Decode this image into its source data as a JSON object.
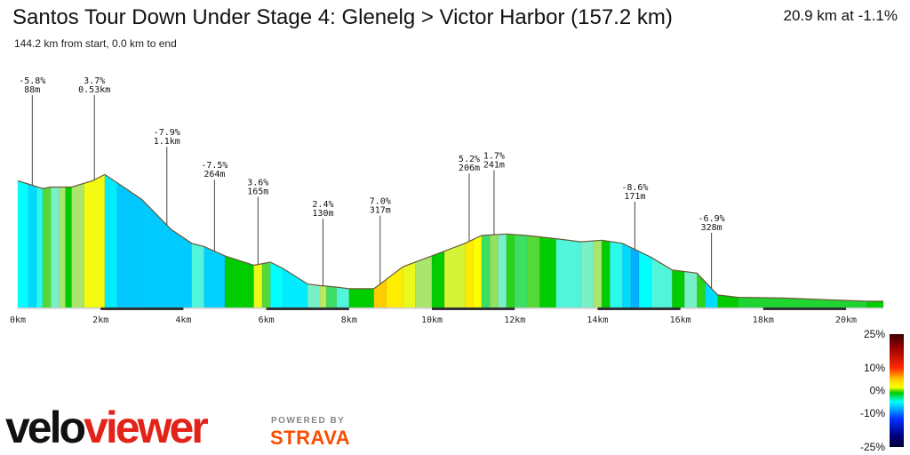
{
  "chart_data": {
    "type": "area",
    "title": "Santos Tour Down Under Stage 4: Glenelg > Victor Harbor (157.2 km)",
    "subtitle": "144.2 km from start, 0.0 km to end",
    "summary": "20.9 km at -1.1%",
    "xlim": [
      0,
      20.9
    ],
    "x_ticks": [
      {
        "value": 0,
        "label": "0km"
      },
      {
        "value": 2,
        "label": "2km"
      },
      {
        "value": 4,
        "label": "4km"
      },
      {
        "value": 6,
        "label": "6km"
      },
      {
        "value": 8,
        "label": "8km"
      },
      {
        "value": 10,
        "label": "10km"
      },
      {
        "value": 12,
        "label": "12km"
      },
      {
        "value": 14,
        "label": "14km"
      },
      {
        "value": 16,
        "label": "16km"
      },
      {
        "value": 18,
        "label": "18km"
      },
      {
        "value": 20,
        "label": "20km"
      }
    ],
    "elevation_profile": [
      {
        "km": 0.0,
        "rel": 0.81
      },
      {
        "km": 0.25,
        "rel": 0.79
      },
      {
        "km": 0.6,
        "rel": 0.76
      },
      {
        "km": 0.8,
        "rel": 0.77
      },
      {
        "km": 1.3,
        "rel": 0.77
      },
      {
        "km": 1.8,
        "rel": 0.81
      },
      {
        "km": 2.1,
        "rel": 0.85
      },
      {
        "km": 2.5,
        "rel": 0.78
      },
      {
        "km": 3.0,
        "rel": 0.69
      },
      {
        "km": 3.7,
        "rel": 0.5
      },
      {
        "km": 4.2,
        "rel": 0.41
      },
      {
        "km": 4.5,
        "rel": 0.39
      },
      {
        "km": 5.0,
        "rel": 0.33
      },
      {
        "km": 5.7,
        "rel": 0.27
      },
      {
        "km": 6.1,
        "rel": 0.29
      },
      {
        "km": 6.4,
        "rel": 0.25
      },
      {
        "km": 7.0,
        "rel": 0.15
      },
      {
        "km": 7.3,
        "rel": 0.14
      },
      {
        "km": 7.7,
        "rel": 0.13
      },
      {
        "km": 8.0,
        "rel": 0.12
      },
      {
        "km": 8.6,
        "rel": 0.12
      },
      {
        "km": 8.9,
        "rel": 0.18
      },
      {
        "km": 9.3,
        "rel": 0.26
      },
      {
        "km": 10.0,
        "rel": 0.33
      },
      {
        "km": 10.8,
        "rel": 0.41
      },
      {
        "km": 11.2,
        "rel": 0.46
      },
      {
        "km": 11.8,
        "rel": 0.47
      },
      {
        "km": 12.3,
        "rel": 0.46
      },
      {
        "km": 13.0,
        "rel": 0.44
      },
      {
        "km": 13.6,
        "rel": 0.42
      },
      {
        "km": 14.1,
        "rel": 0.43
      },
      {
        "km": 14.6,
        "rel": 0.41
      },
      {
        "km": 15.3,
        "rel": 0.32
      },
      {
        "km": 15.8,
        "rel": 0.24
      },
      {
        "km": 16.4,
        "rel": 0.22
      },
      {
        "km": 16.9,
        "rel": 0.08
      },
      {
        "km": 17.4,
        "rel": 0.065
      },
      {
        "km": 18.5,
        "rel": 0.06
      },
      {
        "km": 19.5,
        "rel": 0.05
      },
      {
        "km": 20.5,
        "rel": 0.04
      },
      {
        "km": 20.9,
        "rel": 0.04
      }
    ],
    "segments": [
      {
        "x0": 0.0,
        "x1": 0.25,
        "grade": -5
      },
      {
        "x0": 0.25,
        "x1": 0.45,
        "grade": -7
      },
      {
        "x0": 0.45,
        "x1": 0.6,
        "grade": -4
      },
      {
        "x0": 0.6,
        "x1": 0.8,
        "grade": 1
      },
      {
        "x0": 0.8,
        "x1": 1.0,
        "grade": -2
      },
      {
        "x0": 1.0,
        "x1": 1.15,
        "grade": 2
      },
      {
        "x0": 1.15,
        "x1": 1.3,
        "grade": 0
      },
      {
        "x0": 1.3,
        "x1": 1.6,
        "grade": 2
      },
      {
        "x0": 1.6,
        "x1": 2.1,
        "grade": 3.7
      },
      {
        "x0": 2.1,
        "x1": 2.4,
        "grade": -6
      },
      {
        "x0": 2.4,
        "x1": 3.0,
        "grade": -8
      },
      {
        "x0": 3.0,
        "x1": 4.2,
        "grade": -7.9
      },
      {
        "x0": 4.2,
        "x1": 4.5,
        "grade": -3
      },
      {
        "x0": 4.5,
        "x1": 5.0,
        "grade": -7.5
      },
      {
        "x0": 5.0,
        "x1": 5.7,
        "grade": 0
      },
      {
        "x0": 5.7,
        "x1": 5.9,
        "grade": 3.6
      },
      {
        "x0": 5.9,
        "x1": 6.1,
        "grade": 1
      },
      {
        "x0": 6.1,
        "x1": 6.4,
        "grade": -5
      },
      {
        "x0": 6.4,
        "x1": 7.0,
        "grade": -6
      },
      {
        "x0": 7.0,
        "x1": 7.3,
        "grade": -2
      },
      {
        "x0": 7.3,
        "x1": 7.45,
        "grade": 2.4
      },
      {
        "x0": 7.45,
        "x1": 7.7,
        "grade": -1
      },
      {
        "x0": 7.7,
        "x1": 8.0,
        "grade": -3
      },
      {
        "x0": 8.0,
        "x1": 8.6,
        "grade": 0
      },
      {
        "x0": 8.6,
        "x1": 8.9,
        "grade": 7
      },
      {
        "x0": 8.9,
        "x1": 9.3,
        "grade": 5
      },
      {
        "x0": 9.3,
        "x1": 9.6,
        "grade": 3.5
      },
      {
        "x0": 9.6,
        "x1": 10.0,
        "grade": 2
      },
      {
        "x0": 10.0,
        "x1": 10.3,
        "grade": 0
      },
      {
        "x0": 10.3,
        "x1": 10.8,
        "grade": 3
      },
      {
        "x0": 10.8,
        "x1": 11.0,
        "grade": 5.2
      },
      {
        "x0": 11.0,
        "x1": 11.2,
        "grade": 4
      },
      {
        "x0": 11.2,
        "x1": 11.4,
        "grade": -1
      },
      {
        "x0": 11.4,
        "x1": 11.6,
        "grade": 1.7
      },
      {
        "x0": 11.6,
        "x1": 11.8,
        "grade": -2
      },
      {
        "x0": 11.8,
        "x1": 12.0,
        "grade": 0.5
      },
      {
        "x0": 12.0,
        "x1": 12.3,
        "grade": -1
      },
      {
        "x0": 12.3,
        "x1": 12.6,
        "grade": 1
      },
      {
        "x0": 12.6,
        "x1": 13.0,
        "grade": 0
      },
      {
        "x0": 13.0,
        "x1": 13.6,
        "grade": -3
      },
      {
        "x0": 13.6,
        "x1": 13.9,
        "grade": -2
      },
      {
        "x0": 13.9,
        "x1": 14.1,
        "grade": 2
      },
      {
        "x0": 14.1,
        "x1": 14.3,
        "grade": 0
      },
      {
        "x0": 14.3,
        "x1": 14.6,
        "grade": -4
      },
      {
        "x0": 14.6,
        "x1": 14.8,
        "grade": -7
      },
      {
        "x0": 14.8,
        "x1": 15.0,
        "grade": -8.6
      },
      {
        "x0": 15.0,
        "x1": 15.3,
        "grade": -5
      },
      {
        "x0": 15.3,
        "x1": 15.8,
        "grade": -3
      },
      {
        "x0": 15.8,
        "x1": 16.1,
        "grade": 0
      },
      {
        "x0": 16.1,
        "x1": 16.4,
        "grade": -2
      },
      {
        "x0": 16.4,
        "x1": 16.6,
        "grade": 0.5
      },
      {
        "x0": 16.6,
        "x1": 16.9,
        "grade": -6.9
      },
      {
        "x0": 16.9,
        "x1": 17.4,
        "grade": 0
      },
      {
        "x0": 17.4,
        "x1": 20.5,
        "grade": -0.5
      },
      {
        "x0": 20.5,
        "x1": 20.9,
        "grade": 0
      }
    ],
    "annotations": [
      {
        "km": 0.35,
        "grade": "-5.8%",
        "length": "88m",
        "label_rel": 1.38
      },
      {
        "km": 1.85,
        "grade": "3.7%",
        "length": "0.53km",
        "label_rel": 1.38
      },
      {
        "km": 3.6,
        "grade": "-7.9%",
        "length": "1.1km",
        "label_rel": 1.05
      },
      {
        "km": 4.75,
        "grade": "-7.5%",
        "length": "264m",
        "label_rel": 0.84
      },
      {
        "km": 5.8,
        "grade": "3.6%",
        "length": "165m",
        "label_rel": 0.73
      },
      {
        "km": 7.37,
        "grade": "2.4%",
        "length": "130m",
        "label_rel": 0.59
      },
      {
        "km": 8.75,
        "grade": "7.0%",
        "length": "317m",
        "label_rel": 0.61
      },
      {
        "km": 10.9,
        "grade": "5.2%",
        "length": "206m",
        "label_rel": 0.88
      },
      {
        "km": 11.5,
        "grade": "1.7%",
        "length": "241m",
        "label_rel": 0.9
      },
      {
        "km": 14.9,
        "grade": "-8.6%",
        "length": "171m",
        "label_rel": 0.7
      },
      {
        "km": 16.75,
        "grade": "-6.9%",
        "length": "328m",
        "label_rel": 0.5
      }
    ],
    "axis_bands": [
      [
        2,
        4
      ],
      [
        6,
        8
      ],
      [
        10,
        12
      ],
      [
        14,
        16
      ],
      [
        18,
        20
      ]
    ],
    "legend": {
      "position": "right",
      "labels": [
        {
          "value": 25,
          "label": "25%"
        },
        {
          "value": 10,
          "label": "10%"
        },
        {
          "value": 0,
          "label": "0%"
        },
        {
          "value": -10,
          "label": "-10%"
        },
        {
          "value": -25,
          "label": "-25%"
        }
      ]
    }
  },
  "branding": {
    "logo_alt": "veloviewer",
    "powered_by": "POWERED BY",
    "strava": "STRAVA"
  }
}
